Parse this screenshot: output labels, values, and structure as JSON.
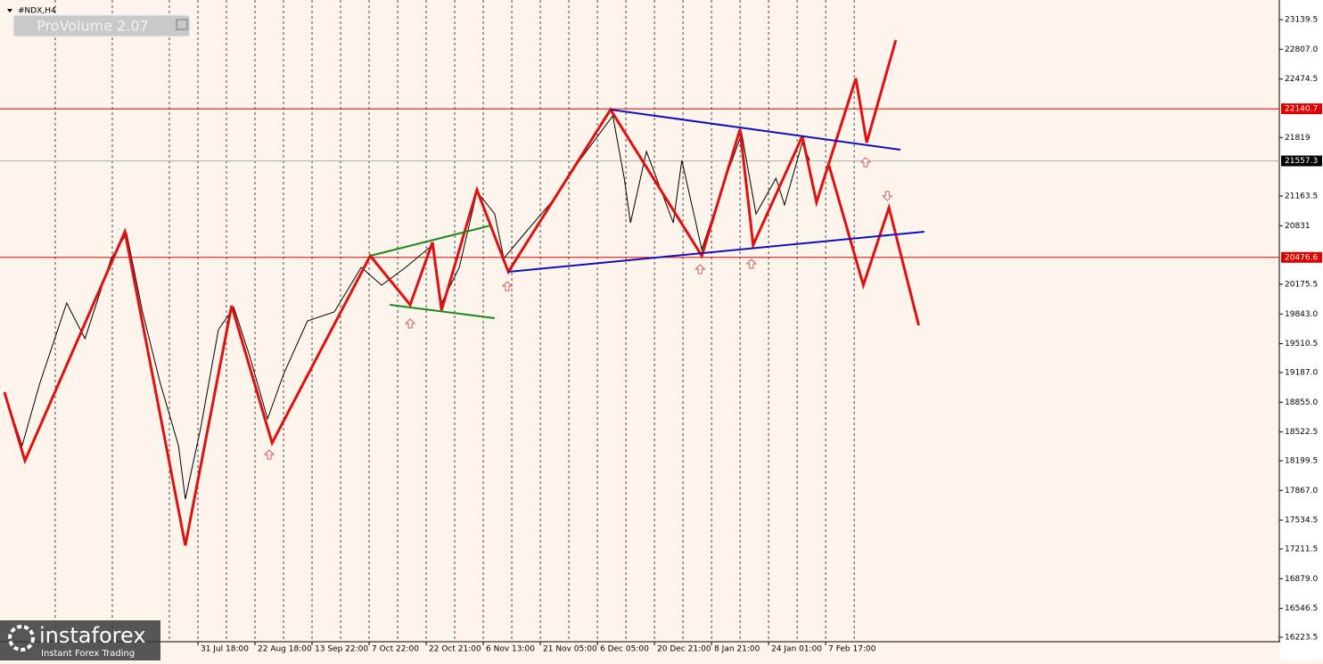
{
  "chart_data": {
    "type": "line",
    "title": "#NDX,H4",
    "indicator_label": "ProVolume 2.07",
    "watermark": "instaforex",
    "watermark_tagline": "Instant Forex Trading",
    "xlim": [
      -3.39,
      18.95
    ],
    "xticks": [
      {
        "value": 0,
        "label": "31 Jul 18:00"
      },
      {
        "value": 1,
        "label": "22 Aug 18:00"
      },
      {
        "value": 2,
        "label": "13 Sep 22:00"
      },
      {
        "value": 3,
        "label": "7 Oct 22:00"
      },
      {
        "value": 4,
        "label": "22 Oct 21:00"
      },
      {
        "value": 5,
        "label": "6 Nov 13:00"
      },
      {
        "value": 6,
        "label": "21 Nov 05:00"
      },
      {
        "value": 7,
        "label": "6 Dec 05:00"
      },
      {
        "value": 8,
        "label": "20 Dec 21:00"
      },
      {
        "value": 9,
        "label": "8 Jan 21:00"
      },
      {
        "value": 10,
        "label": "24 Jan 01:00"
      },
      {
        "value": 11,
        "label": "7 Feb 17:00"
      }
    ],
    "ylim": [
      16173,
      23359
    ],
    "yticks": [
      23139.5,
      {
        "value": 22807,
        "label": "22807.0"
      },
      22474.5,
      21819,
      21163.5,
      20831,
      20175.5,
      {
        "value": 19843,
        "label": "19843.0"
      },
      19510.5,
      {
        "value": 19187,
        "label": "19187.0"
      },
      {
        "value": 18855,
        "label": "18855.0"
      },
      18522.5,
      18199.5,
      {
        "value": 17867,
        "label": "17867.0"
      },
      17534.5,
      17211.5,
      {
        "value": 16879,
        "label": "16879.0"
      },
      16546.5,
      16223.5
    ],
    "grid": true,
    "levels": [
      {
        "value": 22140.7,
        "color": "#e00000"
      },
      {
        "value": 21557.3,
        "color": "#000000"
      },
      {
        "value": 20476.6,
        "color": "#e00000"
      }
    ],
    "series": [
      {
        "color": "#000000",
        "x": [
          -3.39,
          -3.08,
          -2.77,
          -2.3,
          -1.98,
          -1.52,
          -1.25,
          -0.97,
          -0.66,
          -0.34,
          -0.22,
          0.05,
          0.36,
          0.63,
          0.91,
          1.22,
          1.5,
          1.92,
          2.39,
          2.86,
          3.22,
          3.64,
          4.11,
          4.27,
          4.58,
          4.89,
          5.2,
          5.36,
          5.75,
          6.22,
          6.69,
          7.27,
          7.47,
          7.58,
          7.86,
          8.33,
          8.48,
          8.83,
          9.19,
          9.53,
          9.78,
          10.13,
          10.28,
          10.59,
          10.72
        ],
        "values": [
          18968,
          18369,
          19068,
          19966,
          19567,
          20465,
          20745,
          19866,
          19068,
          18369,
          17770,
          18569,
          19667,
          19916,
          19367,
          18668,
          19167,
          19766,
          19866,
          20365,
          20165,
          20365,
          20615,
          19966,
          20365,
          21213,
          20964,
          20465,
          20764,
          21114,
          21563,
          22062,
          21363,
          20864,
          21663,
          20864,
          21563,
          20565,
          21263,
          21862,
          20964,
          21363,
          21064,
          21762,
          21563
        ]
      },
      {
        "color": "#e01010",
        "x": [
          -3.39,
          -3.03,
          -1.28,
          -0.22,
          0.59,
          1.3,
          3.02,
          3.72,
          4.11,
          4.27,
          4.89,
          5.44,
          7.23,
          8.83,
          9.5,
          9.73,
          10.59
        ],
        "values": [
          18968,
          18200,
          20764,
          17251,
          19936,
          18399,
          20495,
          19946,
          20645,
          19886,
          21233,
          20315,
          22131,
          20495,
          21912,
          20615,
          21832
        ]
      },
      {
        "color": "#e01010",
        "x": [
          10.59,
          10.84,
          11.53,
          11.72,
          12.23
        ],
        "values": [
          21832,
          21094,
          22481,
          21762,
          22910
        ]
      },
      {
        "color": "#e01010",
        "x": [
          11.06,
          11.66,
          12.11,
          12.63
        ],
        "values": [
          21503,
          20166,
          21034,
          19716
        ]
      },
      {
        "color": "#1010c0",
        "x": [
          7.23,
          12.31
        ],
        "values": [
          22131,
          21682
        ]
      },
      {
        "color": "#1010c0",
        "x": [
          5.44,
          12.73
        ],
        "values": [
          20315,
          20764
        ]
      },
      {
        "color": "#1a8a1a",
        "x": [
          3.02,
          5.13
        ],
        "values": [
          20495,
          20834
        ]
      },
      {
        "color": "#1a8a1a",
        "x": [
          3.36,
          5.2
        ],
        "values": [
          19946,
          19796
        ]
      }
    ],
    "up_arrows": [
      {
        "x": 1.25,
        "y": 18269
      },
      {
        "x": 3.72,
        "y": 19736
      },
      {
        "x": 5.42,
        "y": 20155
      },
      {
        "x": 8.8,
        "y": 20345
      },
      {
        "x": 9.7,
        "y": 20405
      },
      {
        "x": 11.7,
        "y": 21543
      }
    ],
    "down_arrows": [
      {
        "x": 12.08,
        "y": 21164
      }
    ]
  }
}
